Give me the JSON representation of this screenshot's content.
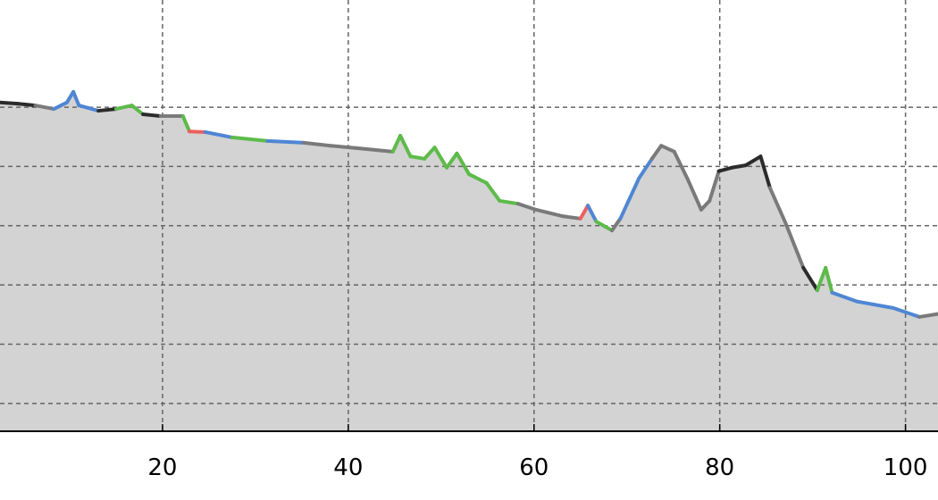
{
  "chart_data": {
    "type": "area",
    "title": "",
    "xlabel": "",
    "ylabel": "",
    "xlim": [
      2.5,
      103.5
    ],
    "ylim": [
      0.53,
      7.81
    ],
    "x_ticks": [
      20,
      40,
      60,
      80,
      100
    ],
    "x_tick_labels": [
      "20",
      "40",
      "60",
      "80",
      "100"
    ],
    "y_grid": [
      1,
      2,
      3,
      4,
      5,
      6
    ],
    "grid": true,
    "grid_style": "dashed",
    "fill_color": "#d3d3d3",
    "palette": {
      "k": "#2b2b2b",
      "g": "#7a7a7a",
      "b": "#4f86d4",
      "G": "#5dbb4a",
      "r": "#ee5f5f"
    },
    "series": [
      {
        "x": [
          2.5,
          4.4,
          6.3,
          8.3,
          9.7,
          10.4,
          11,
          13.1,
          15,
          16.7,
          17.9,
          19.8,
          22.2,
          22.9,
          24.6,
          27.5,
          31.3,
          35.2,
          38.1,
          40.9,
          44.8,
          45.6,
          46.7,
          48.2,
          49.3,
          50.6,
          51.7,
          53,
          54.9,
          56.3,
          58.3,
          60.2,
          63.1,
          65,
          65.8,
          66.7,
          68.4,
          69.3,
          71.3,
          72.7,
          73.7,
          75.1,
          76.5,
          78,
          78.9,
          79.9,
          81.3,
          82.8,
          84.4,
          85.4,
          87.1,
          89,
          90.5,
          91.4,
          92.1,
          94.8,
          98.7,
          101.5,
          103.5
        ],
        "y": [
          6.08,
          6.06,
          6.03,
          5.97,
          6.08,
          6.26,
          6.03,
          5.94,
          5.97,
          6.03,
          5.88,
          5.85,
          5.85,
          5.59,
          5.58,
          5.49,
          5.43,
          5.4,
          5.35,
          5.31,
          5.25,
          5.52,
          5.17,
          5.13,
          5.32,
          4.98,
          5.22,
          4.87,
          4.72,
          4.42,
          4.37,
          4.27,
          4.16,
          4.12,
          4.34,
          4.07,
          3.92,
          4.12,
          4.8,
          5.13,
          5.35,
          5.25,
          4.8,
          4.27,
          4.42,
          4.92,
          4.98,
          5.02,
          5.17,
          4.64,
          4.04,
          3.29,
          2.91,
          3.29,
          2.87,
          2.72,
          2.61,
          2.46,
          2.51
        ],
        "segment_colors": [
          "k",
          "k",
          "g",
          "b",
          "b",
          "b",
          "b",
          "k",
          "G",
          "G",
          "k",
          "g",
          "G",
          "r",
          "b",
          "G",
          "b",
          "g",
          "g",
          "g",
          "G",
          "G",
          "G",
          "G",
          "G",
          "G",
          "G",
          "G",
          "G",
          "G",
          "g",
          "g",
          "g",
          "r",
          "b",
          "G",
          "g",
          "b",
          "b",
          "g",
          "g",
          "g",
          "g",
          "g",
          "g",
          "k",
          "k",
          "k",
          "k",
          "g",
          "g",
          "k",
          "G",
          "G",
          "b",
          "b",
          "b",
          "g"
        ]
      }
    ]
  }
}
